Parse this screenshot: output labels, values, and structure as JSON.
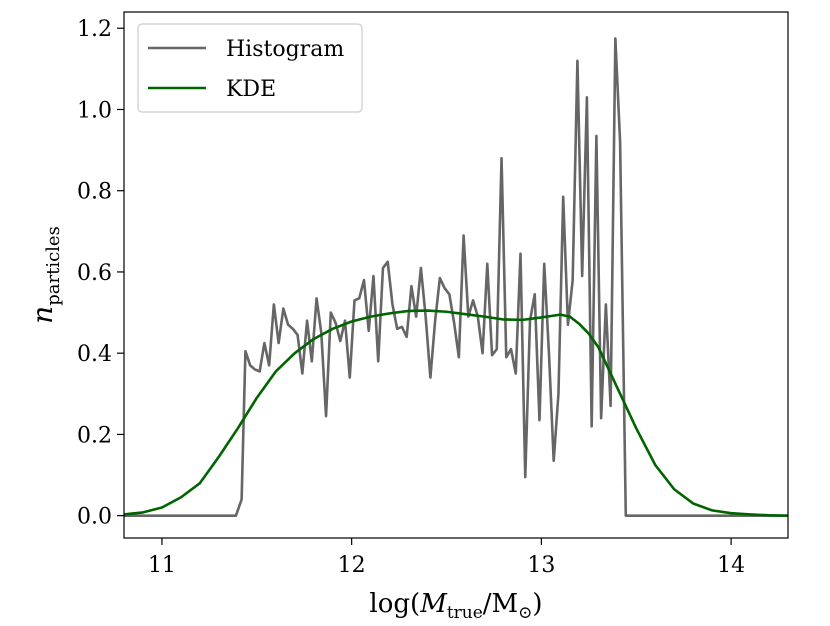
{
  "chart_data": {
    "type": "line",
    "title": "",
    "xlabel": "log(M_true/M_⊙)",
    "xlabel_parts": {
      "prefix": "log(",
      "var": "M",
      "var_sub": "true",
      "sep": "/M",
      "sep_sub": "⊙",
      "suffix": ")"
    },
    "ylabel": "n_particles",
    "ylabel_parts": {
      "var": "n",
      "sub": "particles"
    },
    "xlim": [
      10.8,
      14.3
    ],
    "ylim": [
      -0.055,
      1.24
    ],
    "xticks": [
      11,
      12,
      13,
      14
    ],
    "xtick_labels": [
      "11",
      "12",
      "13",
      "14"
    ],
    "yticks": [
      0.0,
      0.2,
      0.4,
      0.6,
      0.8,
      1.0,
      1.2
    ],
    "ytick_labels": [
      "0.0",
      "0.2",
      "0.4",
      "0.6",
      "0.8",
      "1.0",
      "1.2"
    ],
    "legend_position": "top-left",
    "series": [
      {
        "name": "Histogram",
        "color": "#666666",
        "x": [
          10.8,
          11.39,
          11.42,
          11.44,
          11.465,
          11.49,
          11.515,
          11.54,
          11.565,
          11.59,
          11.615,
          11.64,
          11.665,
          11.69,
          11.715,
          11.74,
          11.765,
          11.79,
          11.815,
          11.84,
          11.865,
          11.89,
          11.915,
          11.94,
          11.965,
          11.99,
          12.015,
          12.04,
          12.065,
          12.09,
          12.115,
          12.14,
          12.165,
          12.19,
          12.215,
          12.24,
          12.265,
          12.29,
          12.315,
          12.34,
          12.365,
          12.39,
          12.415,
          12.44,
          12.465,
          12.49,
          12.515,
          12.54,
          12.565,
          12.59,
          12.615,
          12.64,
          12.665,
          12.69,
          12.715,
          12.74,
          12.765,
          12.79,
          12.815,
          12.84,
          12.865,
          12.89,
          12.915,
          12.94,
          12.965,
          12.99,
          13.015,
          13.04,
          13.065,
          13.09,
          13.115,
          13.14,
          13.165,
          13.19,
          13.215,
          13.24,
          13.265,
          13.29,
          13.315,
          13.34,
          13.365,
          13.39,
          13.415,
          13.445,
          13.46,
          14.3
        ],
        "y": [
          0.0,
          0.0,
          0.04,
          0.405,
          0.37,
          0.36,
          0.355,
          0.425,
          0.37,
          0.52,
          0.425,
          0.51,
          0.47,
          0.46,
          0.445,
          0.35,
          0.48,
          0.38,
          0.535,
          0.45,
          0.245,
          0.5,
          0.475,
          0.43,
          0.48,
          0.34,
          0.53,
          0.535,
          0.58,
          0.455,
          0.59,
          0.38,
          0.61,
          0.625,
          0.52,
          0.46,
          0.465,
          0.44,
          0.565,
          0.49,
          0.61,
          0.49,
          0.34,
          0.48,
          0.585,
          0.56,
          0.545,
          0.475,
          0.39,
          0.69,
          0.49,
          0.53,
          0.49,
          0.4,
          0.62,
          0.395,
          0.41,
          0.88,
          0.39,
          0.41,
          0.35,
          0.645,
          0.095,
          0.48,
          0.545,
          0.235,
          0.62,
          0.4,
          0.135,
          0.3,
          0.785,
          0.47,
          0.58,
          1.12,
          0.59,
          1.03,
          0.22,
          0.935,
          0.24,
          0.52,
          0.27,
          1.175,
          0.92,
          0.0,
          0.0,
          0.0
        ]
      },
      {
        "name": "KDE",
        "color": "#006400",
        "x": [
          10.8,
          10.9,
          11.0,
          11.1,
          11.2,
          11.3,
          11.4,
          11.5,
          11.6,
          11.7,
          11.8,
          11.9,
          12.0,
          12.1,
          12.2,
          12.3,
          12.4,
          12.5,
          12.6,
          12.7,
          12.8,
          12.9,
          13.0,
          13.1,
          13.15,
          13.2,
          13.25,
          13.3,
          13.4,
          13.5,
          13.6,
          13.7,
          13.8,
          13.9,
          14.0,
          14.1,
          14.2,
          14.3
        ],
        "y": [
          0.003,
          0.008,
          0.02,
          0.045,
          0.08,
          0.145,
          0.215,
          0.29,
          0.355,
          0.4,
          0.435,
          0.46,
          0.478,
          0.49,
          0.498,
          0.504,
          0.505,
          0.502,
          0.496,
          0.49,
          0.483,
          0.482,
          0.488,
          0.495,
          0.49,
          0.472,
          0.448,
          0.415,
          0.315,
          0.215,
          0.125,
          0.065,
          0.03,
          0.013,
          0.006,
          0.003,
          0.001,
          0.0
        ]
      }
    ]
  }
}
